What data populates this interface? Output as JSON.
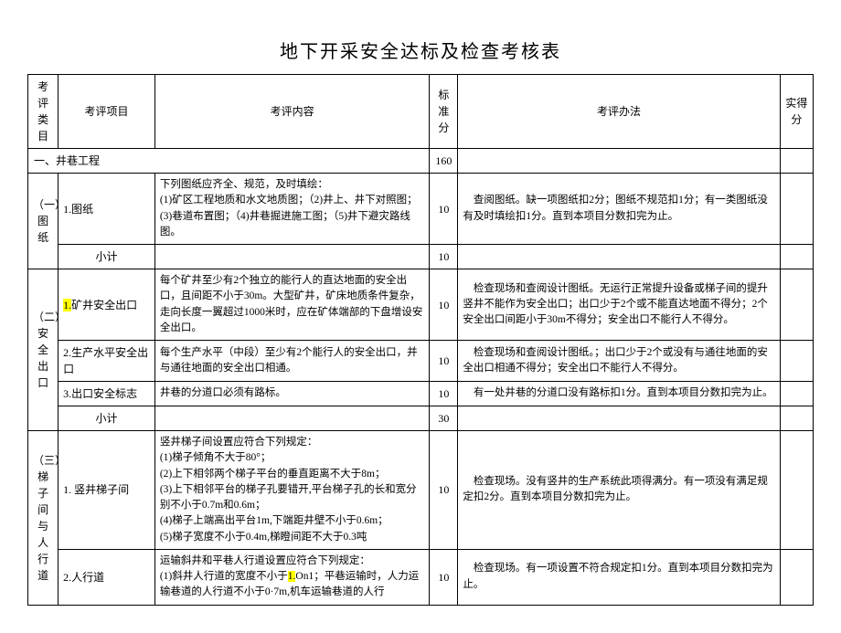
{
  "title": "地下开采安全达标及检查考核表",
  "headers": {
    "category": "考评类目",
    "item": "考评项目",
    "content": "考评内容",
    "score": "标准分",
    "method": "考评办法",
    "actual": "实得分"
  },
  "section1": {
    "label": "一、井巷工程",
    "score": "160"
  },
  "group1": {
    "label": "（一）图纸",
    "row1": {
      "item": "1.图纸",
      "content": "下列图纸应齐全、规范，及时填绘：\n(1)矿区工程地质和水文地质图；（2)井上、井下对照图；(3)巷道布置图；（4)井巷掘进施工图；（5)井下避灾路线图。",
      "score": "10",
      "method": "查阅图纸。缺一项图纸扣2分；图纸不规范扣1分；有一类图纸没有及时填绘扣1分。直到本项目分数扣完为止。"
    },
    "subtotal": {
      "label": "小计",
      "score": "10"
    }
  },
  "group2": {
    "label": "（二）安全出口",
    "row1": {
      "item_prefix": "1.",
      "item": "矿井安全出口",
      "content": "每个矿井至少有2个独立的能行人的直达地面的安全出口，且间距不小于30m。大型矿井，矿床地质条件复杂，走向长度一翼超过1000米时，应在矿体端部的下盘增设安全出口。",
      "score": "10",
      "method": "检查现场和查阅设计图纸。无运行正常提升设备或梯子间的提升竖井不能作为安全出口；出口少于2个或不能直达地面不得分；2个安全出口间距小于30m不得分；安全出口不能行人不得分。"
    },
    "row2": {
      "item": "2.生产水平安全出口",
      "content": "每个生产水平（中段）至少有2个能行人的安全出口，并与通往地面的安全出口相通。",
      "score": "10",
      "method": "检查现场和查阅设计图纸。；出口少于2个或没有与通往地面的安全出口相通不得分；安全出口不能行人不得分。"
    },
    "row3": {
      "item": "3.出口安全标志",
      "content": "井巷的分道口必须有路标。",
      "score": "10",
      "method": "有一处井巷的分道口没有路标扣1分。直到本项目分数扣完为止。"
    },
    "subtotal": {
      "label": "小计",
      "score": "30"
    }
  },
  "group3": {
    "label": "（三）梯子间与人行道",
    "row1": {
      "item": "1. 竖井梯子间",
      "content": "竖井梯子间设置应符合下列规定：\n(1)梯子倾角不大于80°；\n(2)上下相邻两个梯子平台的垂直距离不大于8m；\n(3)上下相邻平台的梯子孔要错开,平台梯子孔的长和宽分别不小于0.7m和0.6m；\n(4)梯子上端高出平台1m,下端距井壁不小于0.6m；\n(5)梯子宽度不小于0.4m,梯瞪间距不大于0.3吨",
      "score": "10",
      "method": "检查现场。没有竖井的生产系统此项得满分。有一项没有满足规定扣2分。直到本项目分数扣完为止。"
    },
    "row2": {
      "item": "2.人行道",
      "content_prefix": "运输斜井和平巷人行道设置应符合下列规定：\n(1)斜井人行道的宽度不小于",
      "content_hl": "1.",
      "content_suffix": "On1；平巷运输时，人力运输巷道的人行道不小于0·7m,机车运输巷道的人行",
      "score": "10",
      "method": "检查现场。有一项设置不符合规定扣1分。直到本项目分数扣完为止。"
    }
  }
}
